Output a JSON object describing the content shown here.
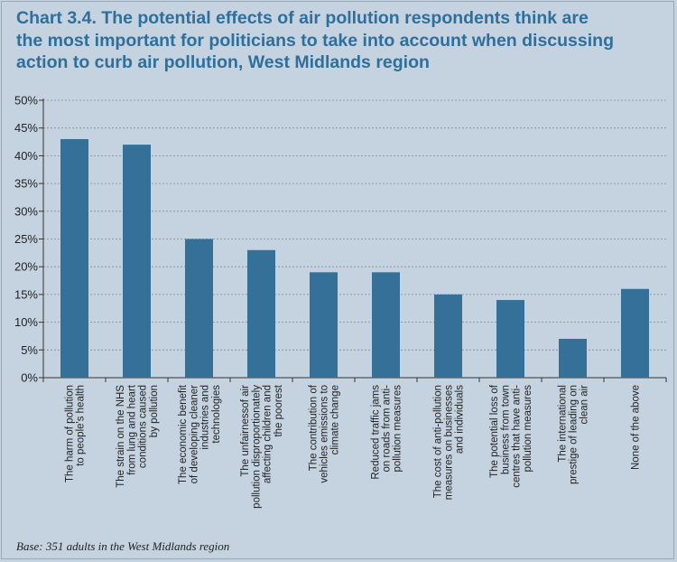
{
  "chart_data": {
    "type": "bar",
    "title": "Chart 3.4. The potential effects of air pollution respondents think are the most important for politicians to take into account when discussing action to curb air pollution, West Midlands region",
    "title_lines": [
      "Chart 3.4. The potential effects of air pollution respondents think are",
      "the most important for politicians to take into account when discussing",
      "action to curb air pollution, West Midlands region"
    ],
    "categories": [
      [
        "The harm of pollution",
        "to people's health"
      ],
      [
        "The strain on the NHS",
        "from lung and heart",
        "conditions caused",
        "by pollution"
      ],
      [
        "The economic benefit",
        "of developing cleaner",
        "industries and",
        "technologies"
      ],
      [
        "The unfairnessof air",
        "pollution disproportionately",
        "affecting children and",
        "the poorest"
      ],
      [
        "The contribution of",
        "vehicles emissions to",
        "climate change"
      ],
      [
        "Reduced traffic jams",
        "on roads from anti-",
        "pollution measures"
      ],
      [
        "The cost of anti-pollution",
        "measures on businesses",
        "and individuals"
      ],
      [
        "The potential loss of",
        "business from town",
        "centres that have anti-",
        "pollution measures"
      ],
      [
        "The international",
        "prestige of leading on",
        "clean air"
      ],
      [
        "None of the above"
      ]
    ],
    "values": [
      43,
      42,
      25,
      23,
      19,
      19,
      15,
      14,
      7,
      16
    ],
    "ylim": [
      0,
      50
    ],
    "yticks": [
      0,
      5,
      10,
      15,
      20,
      25,
      30,
      35,
      40,
      45,
      50
    ],
    "ytick_labels": [
      "0%",
      "5%",
      "10%",
      "15%",
      "20%",
      "25%",
      "30%",
      "35%",
      "40%",
      "45%",
      "50%"
    ],
    "xlabel": "",
    "ylabel": "",
    "grid": true,
    "legend": "none",
    "colors": {
      "bar": "#347097",
      "title": "#2e6f9c",
      "background": "#c5d3e0",
      "grid": "#7f8b96",
      "axis": "#333333"
    },
    "note": "Base: 351 adults in the West Midlands region"
  }
}
